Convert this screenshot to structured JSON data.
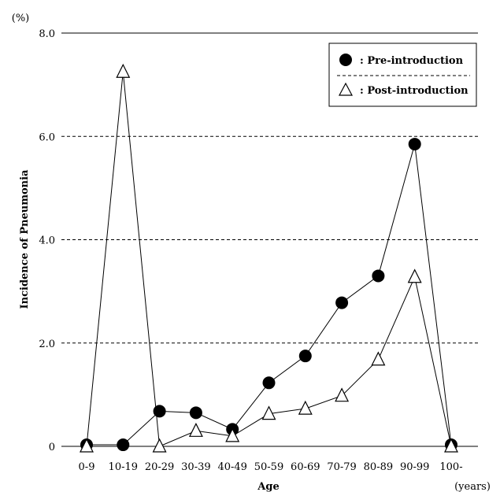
{
  "chart_data": {
    "type": "line",
    "xlabel": "Age",
    "x_unit": "(years)",
    "ylabel": "Incidence of Pneumonia",
    "y_unit": "(%)",
    "ylim": [
      0,
      8
    ],
    "yticks": [
      "0",
      "2.0",
      "4.0",
      "6.0",
      "8.0"
    ],
    "grid": "horizontal dashed at each y tick, solid line at top",
    "legend_position": "top-right",
    "categories": [
      "0-9",
      "10-19",
      "20-29",
      "30-39",
      "40-49",
      "50-59",
      "60-69",
      "70-79",
      "80-89",
      "90-99",
      "100-"
    ],
    "series": [
      {
        "name": "Pre-introduction",
        "legend_label": ": Pre-introduction",
        "marker": "filled-circle",
        "values": [
          0.03,
          0.03,
          0.68,
          0.65,
          0.33,
          1.23,
          1.75,
          2.78,
          3.3,
          5.85,
          0.03
        ]
      },
      {
        "name": "Post-introduction",
        "legend_label": ": Post-introduction",
        "marker": "open-triangle",
        "values": [
          0,
          7.25,
          0,
          0.3,
          0.2,
          0.63,
          0.73,
          0.98,
          1.68,
          3.28,
          0
        ]
      }
    ]
  }
}
